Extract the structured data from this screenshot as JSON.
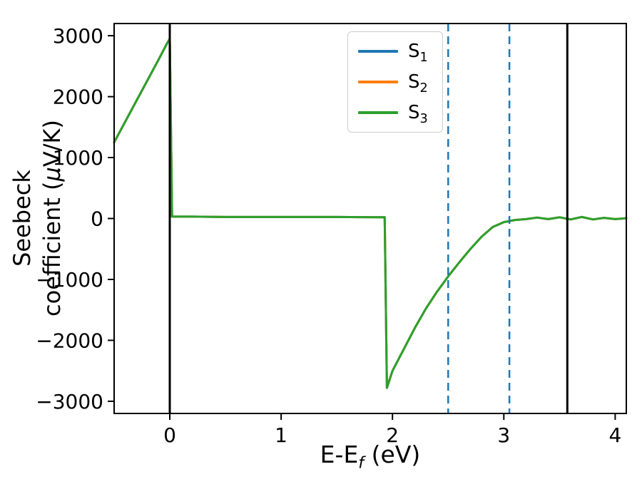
{
  "page": {
    "background": "#ffffff"
  },
  "chart_data": {
    "type": "line",
    "title": "",
    "xlabel_parts": {
      "pre": "E-E",
      "sub": "f",
      "post": " (eV)"
    },
    "ylabel_lines": {
      "line1": "Seebeck",
      "line2_pre": "coefficient  (",
      "line2_mu": "μ",
      "line2_post": "V/K)"
    },
    "xlim": [
      -0.5,
      4.1
    ],
    "ylim": [
      -3200,
      3200
    ],
    "xticks": [
      0,
      1,
      2,
      3,
      4
    ],
    "yticks": [
      -3000,
      -2000,
      -1000,
      0,
      1000,
      2000,
      3000
    ],
    "grid": false,
    "legend": {
      "position": "upper center",
      "entries": [
        {
          "base": "S",
          "sub": "1",
          "color": "#1f77b4"
        },
        {
          "base": "S",
          "sub": "2",
          "color": "#ff7f0e"
        },
        {
          "base": "S",
          "sub": "3",
          "color": "#2ca02c"
        }
      ]
    },
    "vlines": [
      {
        "x": 0.0,
        "color": "#000000",
        "style": "solid",
        "width": 3
      },
      {
        "x": 3.57,
        "color": "#000000",
        "style": "solid",
        "width": 3
      },
      {
        "x": 2.5,
        "color": "#1f77b4",
        "style": "dashed",
        "width": 2.5
      },
      {
        "x": 3.05,
        "color": "#1f77b4",
        "style": "dashed",
        "width": 2.5
      }
    ],
    "x": [
      -0.5,
      -0.4,
      -0.3,
      -0.2,
      -0.1,
      -0.02,
      0.0,
      0.02,
      0.2,
      0.5,
      1.0,
      1.5,
      1.9,
      1.93,
      1.95,
      2.0,
      2.1,
      2.2,
      2.3,
      2.4,
      2.5,
      2.6,
      2.7,
      2.8,
      2.9,
      3.0,
      3.1,
      3.2,
      3.3,
      3.4,
      3.5,
      3.6,
      3.7,
      3.8,
      3.9,
      4.0,
      4.1
    ],
    "series": [
      {
        "name": "S1",
        "color": "#1f77b4",
        "values": [
          1250,
          1590,
          1930,
          2270,
          2610,
          2890,
          2950,
          30,
          30,
          25,
          25,
          25,
          20,
          20,
          -2780,
          -2500,
          -2150,
          -1800,
          -1480,
          -1200,
          -950,
          -720,
          -500,
          -300,
          -140,
          -60,
          -25,
          -10,
          15,
          -10,
          20,
          -15,
          25,
          -15,
          10,
          -10,
          5
        ]
      },
      {
        "name": "S2",
        "color": "#ff7f0e",
        "values": [
          1250,
          1590,
          1930,
          2270,
          2610,
          2890,
          2950,
          30,
          30,
          25,
          25,
          25,
          20,
          20,
          -2780,
          -2500,
          -2150,
          -1800,
          -1480,
          -1200,
          -950,
          -720,
          -500,
          -300,
          -140,
          -60,
          -25,
          -10,
          15,
          -10,
          20,
          -15,
          25,
          -15,
          10,
          -10,
          5
        ]
      },
      {
        "name": "S3",
        "color": "#2ca02c",
        "values": [
          1250,
          1590,
          1930,
          2270,
          2610,
          2890,
          2950,
          30,
          30,
          25,
          25,
          25,
          20,
          20,
          -2780,
          -2500,
          -2150,
          -1800,
          -1480,
          -1200,
          -950,
          -720,
          -500,
          -300,
          -140,
          -60,
          -25,
          -10,
          15,
          -10,
          20,
          -15,
          25,
          -15,
          10,
          -10,
          5
        ]
      }
    ]
  }
}
